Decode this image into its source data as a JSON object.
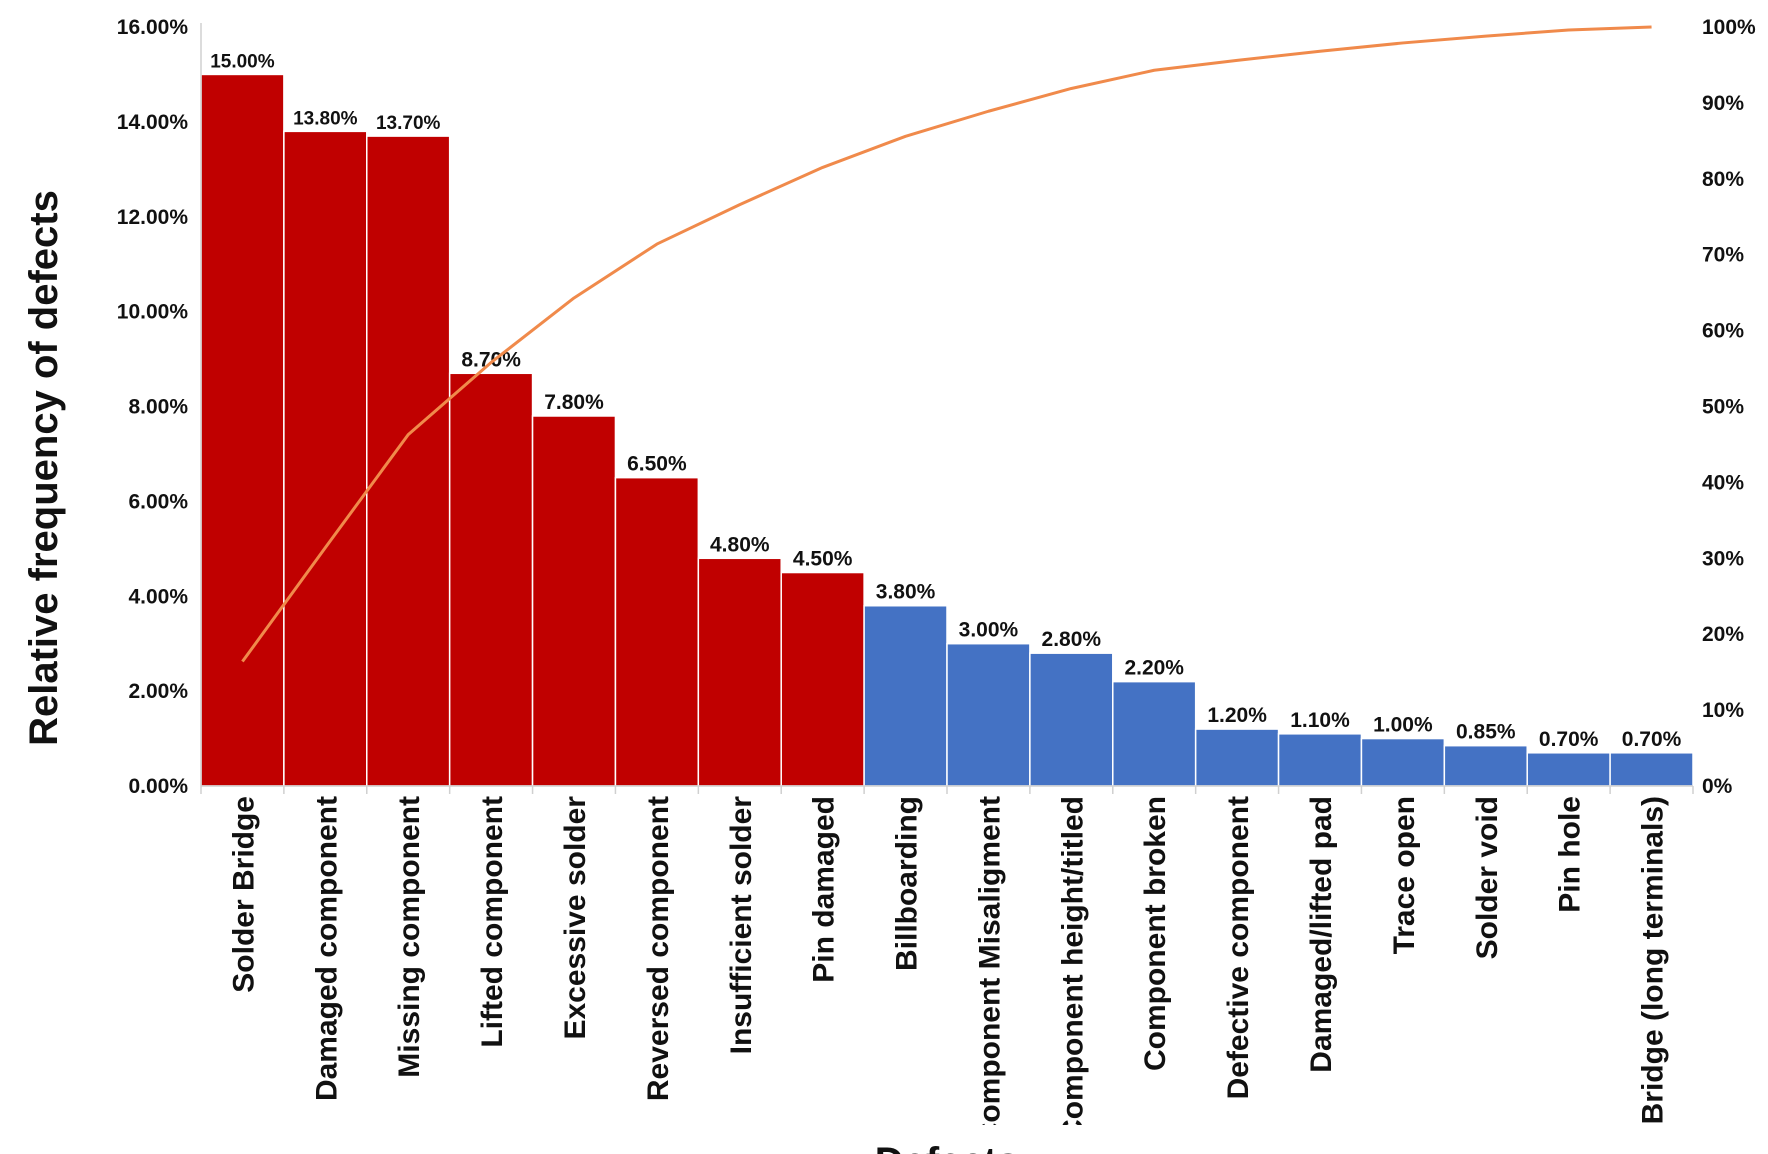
{
  "chart_data": {
    "type": "bar",
    "ylabel": "Relative frequency of defects",
    "xlabel": "Defects",
    "ylim": [
      0,
      16
    ],
    "y2lim": [
      0,
      100
    ],
    "y_ticks": [
      "0.00%",
      "2.00%",
      "4.00%",
      "6.00%",
      "8.00%",
      "10.00%",
      "12.00%",
      "14.00%",
      "16.00%"
    ],
    "y2_ticks": [
      "0%",
      "10%",
      "20%",
      "30%",
      "40%",
      "50%",
      "60%",
      "70%",
      "80%",
      "90%",
      "100%"
    ],
    "grid": false,
    "colors": {
      "major": "#c00000",
      "minor": "#4472c4",
      "cumulative": "#f08a4b"
    },
    "categories": [
      "Solder Bridge",
      "Damaged component",
      "Missing component",
      "Lifted component",
      "Excessive solder",
      "Reversed component",
      "Insufficient solder",
      "Pin damaged",
      "Billboarding",
      "Component Misaligment",
      "Component height/titled",
      "Component broken",
      "Defective component",
      "Damaged/lifted pad",
      "Trace open",
      "Solder void",
      "Pin hole",
      "Bridge (long terminals)"
    ],
    "values": [
      15.0,
      13.8,
      13.7,
      8.7,
      7.8,
      6.5,
      4.8,
      4.5,
      3.8,
      3.0,
      2.8,
      2.2,
      1.2,
      1.1,
      1.0,
      0.85,
      0.7,
      0.7
    ],
    "value_labels": [
      "15.00%",
      "13.80%",
      "13.70%",
      "8.70%",
      "7.80%",
      "6.50%",
      "4.80%",
      "4.50%",
      "3.80%",
      "3.00%",
      "2.80%",
      "2.20%",
      "1.20%",
      "1.10%",
      "1.00%",
      "0.85%",
      "0.70%",
      "0.70%"
    ],
    "bar_groups": [
      "major",
      "major",
      "major",
      "major",
      "major",
      "major",
      "major",
      "major",
      "minor",
      "minor",
      "minor",
      "minor",
      "minor",
      "minor",
      "minor",
      "minor",
      "minor",
      "minor"
    ],
    "cumulative": [
      16.4,
      31.4,
      46.3,
      55.8,
      64.3,
      71.4,
      76.6,
      81.5,
      85.6,
      88.9,
      91.9,
      94.3,
      95.6,
      96.8,
      97.9,
      98.8,
      99.6,
      100.0
    ]
  }
}
